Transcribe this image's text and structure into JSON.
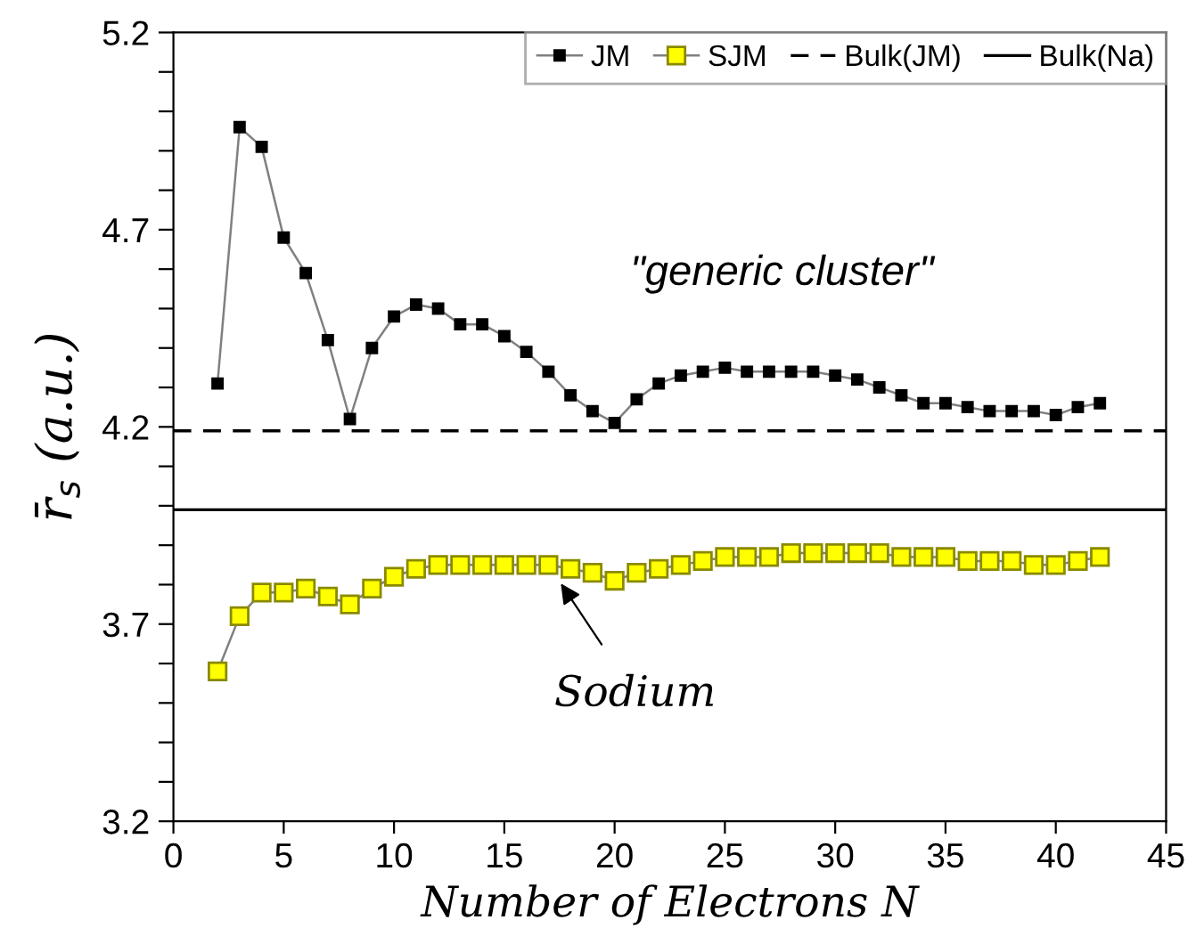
{
  "chart_data": {
    "type": "line",
    "xlabel": "Number of Electrons N",
    "ylabel": "r̄$_{s}$ (a.u.)",
    "x": [
      2,
      3,
      4,
      5,
      6,
      7,
      8,
      9,
      10,
      11,
      12,
      13,
      14,
      15,
      16,
      17,
      18,
      19,
      20,
      21,
      22,
      23,
      24,
      25,
      26,
      27,
      28,
      29,
      30,
      31,
      32,
      33,
      34,
      35,
      36,
      37,
      38,
      39,
      40,
      41,
      42
    ],
    "series": [
      {
        "name": "JM",
        "color": "#000000",
        "marker": "square",
        "values": [
          4.31,
          4.96,
          4.91,
          4.68,
          4.59,
          4.42,
          4.22,
          4.4,
          4.48,
          4.51,
          4.5,
          4.46,
          4.46,
          4.43,
          4.39,
          4.34,
          4.28,
          4.24,
          4.21,
          4.27,
          4.31,
          4.33,
          4.34,
          4.35,
          4.34,
          4.34,
          4.34,
          4.34,
          4.33,
          4.32,
          4.3,
          4.28,
          4.26,
          4.26,
          4.25,
          4.24,
          4.24,
          4.24,
          4.23,
          4.25,
          4.26
        ]
      },
      {
        "name": "SJM",
        "color": "#ffff00",
        "marker": "square",
        "values": [
          3.58,
          3.72,
          3.78,
          3.78,
          3.79,
          3.77,
          3.75,
          3.79,
          3.82,
          3.84,
          3.85,
          3.85,
          3.85,
          3.85,
          3.85,
          3.85,
          3.84,
          3.83,
          3.81,
          3.83,
          3.84,
          3.85,
          3.86,
          3.87,
          3.87,
          3.87,
          3.88,
          3.88,
          3.88,
          3.88,
          3.88,
          3.87,
          3.87,
          3.87,
          3.86,
          3.86,
          3.86,
          3.85,
          3.85,
          3.86,
          3.87
        ]
      }
    ],
    "ref_lines": [
      {
        "axis": "y",
        "value": 4.19,
        "label": "Bulk(JM)",
        "line_style": "dashed",
        "color": "#000000"
      },
      {
        "axis": "y",
        "value": 3.99,
        "label": "Bulk(Na)",
        "line_style": "solid",
        "color": "#000000"
      }
    ],
    "annotations": [
      {
        "text": "\"generic cluster\""
      },
      {
        "text": "Sodium",
        "x": 17,
        "y": 3.85
      }
    ],
    "xlim": [
      0,
      45
    ],
    "xticks": [
      0,
      5,
      10,
      15,
      20,
      25,
      30,
      35,
      40,
      45
    ],
    "ylim": [
      3.2,
      5.2
    ],
    "yticks": [
      3.2,
      {
        "value": 3.3,
        "label": null
      },
      {
        "value": 3.4,
        "label": null
      },
      {
        "value": 3.5,
        "label": null
      },
      {
        "value": 3.6,
        "label": null
      },
      3.7,
      {
        "value": 3.8,
        "label": null
      },
      {
        "value": 3.9,
        "label": null
      },
      {
        "value": 4.0,
        "label": null
      },
      {
        "value": 4.1,
        "label": null
      },
      4.2,
      {
        "value": 4.3,
        "label": null
      },
      {
        "value": 4.4,
        "label": null
      },
      {
        "value": 4.5,
        "label": null
      },
      {
        "value": 4.6,
        "label": null
      },
      4.7,
      {
        "value": 4.8,
        "label": null
      },
      {
        "value": 4.9,
        "label": null
      },
      {
        "value": 5.0,
        "label": null
      },
      {
        "value": 5.1,
        "label": null
      },
      5.2
    ],
    "grid": false,
    "legend": "top right"
  }
}
